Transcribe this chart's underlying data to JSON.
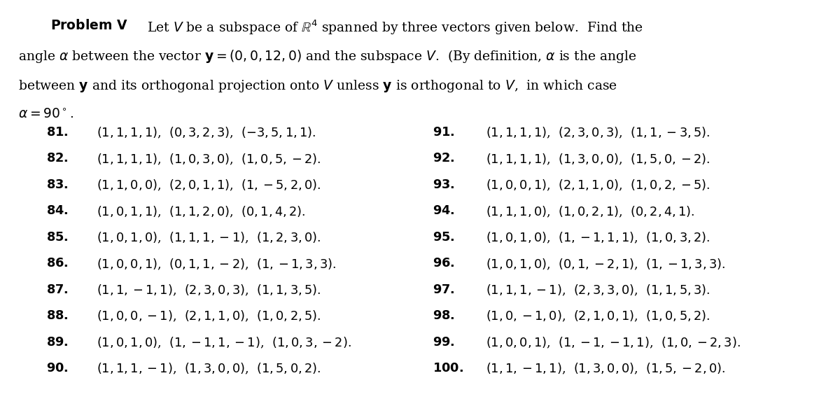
{
  "background_color": "#ffffff",
  "title_bold": "Problem V",
  "title_normal": "  Let $V$ be a subspace of $\\mathbb{R}^4$ spanned by three vectors given below.  Find the",
  "paragraph": [
    "angle $\\alpha$ between the vector $\\mathbf{y} = (0, 0, 12, 0)$ and the subspace $V$.  (By definition, $\\alpha$ is the angle",
    "between $\\mathbf{y}$ and its orthogonal projection onto $V$ unless $\\mathbf{y}$ is orthogonal to $V$,  in which case",
    "$\\alpha = 90^\\circ$."
  ],
  "left_items": [
    {
      "num": "81.",
      "text": "$(1,1,1,1)$,  $(0,3,2,3)$,  $(-3,5,1,1)$."
    },
    {
      "num": "82.",
      "text": "$(1,1,1,1)$,  $(1,0,3,0)$,  $(1,0,5,-2)$."
    },
    {
      "num": "83.",
      "text": "$(1,1,0,0)$,  $(2,0,1,1)$,  $(1,-5,2,0)$."
    },
    {
      "num": "84.",
      "text": "$(1,0,1,1)$,  $(1,1,2,0)$,  $(0,1,4,2)$."
    },
    {
      "num": "85.",
      "text": "$(1,0,1,0)$,  $(1,1,1,-1)$,  $(1,2,3,0)$."
    },
    {
      "num": "86.",
      "text": "$(1,0,0,1)$,  $(0,1,1,-2)$,  $(1,-1,3,3)$."
    },
    {
      "num": "87.",
      "text": "$(1,1,-1,1)$,  $(2,3,0,3)$,  $(1,1,3,5)$."
    },
    {
      "num": "88.",
      "text": "$(1,0,0,-1)$,  $(2,1,1,0)$,  $(1,0,2,5)$."
    },
    {
      "num": "89.",
      "text": "$(1,0,1,0)$,  $(1,-1,1,-1)$,  $(1,0,3,-2)$."
    },
    {
      "num": "90.",
      "text": "$(1,1,1,-1)$,  $(1,3,0,0)$,  $(1,5,0,2)$."
    }
  ],
  "right_items": [
    {
      "num": "91.",
      "text": "$(1,1,1,1)$,  $(2,3,0,3)$,  $(1,1,-3,5)$."
    },
    {
      "num": "92.",
      "text": "$(1,1,1,1)$,  $(1,3,0,0)$,  $(1,5,0,-2)$."
    },
    {
      "num": "93.",
      "text": "$(1,0,0,1)$,  $(2,1,1,0)$,  $(1,0,2,-5)$."
    },
    {
      "num": "94.",
      "text": "$(1,1,1,0)$,  $(1,0,2,1)$,  $(0,2,4,1)$."
    },
    {
      "num": "95.",
      "text": "$(1,0,1,0)$,  $(1,-1,1,1)$,  $(1,0,3,2)$."
    },
    {
      "num": "96.",
      "text": "$(1,0,1,0)$,  $(0,1,-2,1)$,  $(1,-1,3,3)$."
    },
    {
      "num": "97.",
      "text": "$(1,1,1,-1)$,  $(2,3,3,0)$,  $(1,1,5,3)$."
    },
    {
      "num": "98.",
      "text": "$(1,0,-1,0)$,  $(2,1,0,1)$,  $(1,0,5,2)$."
    },
    {
      "num": "99.",
      "text": "$(1,0,0,1)$,  $(1,-1,-1,1)$,  $(1,0,-2,3)$."
    },
    {
      "num": "100.",
      "text": "$(1,1,-1,1)$,  $(1,3,0,0)$,  $(1,5,-2,0)$."
    }
  ]
}
